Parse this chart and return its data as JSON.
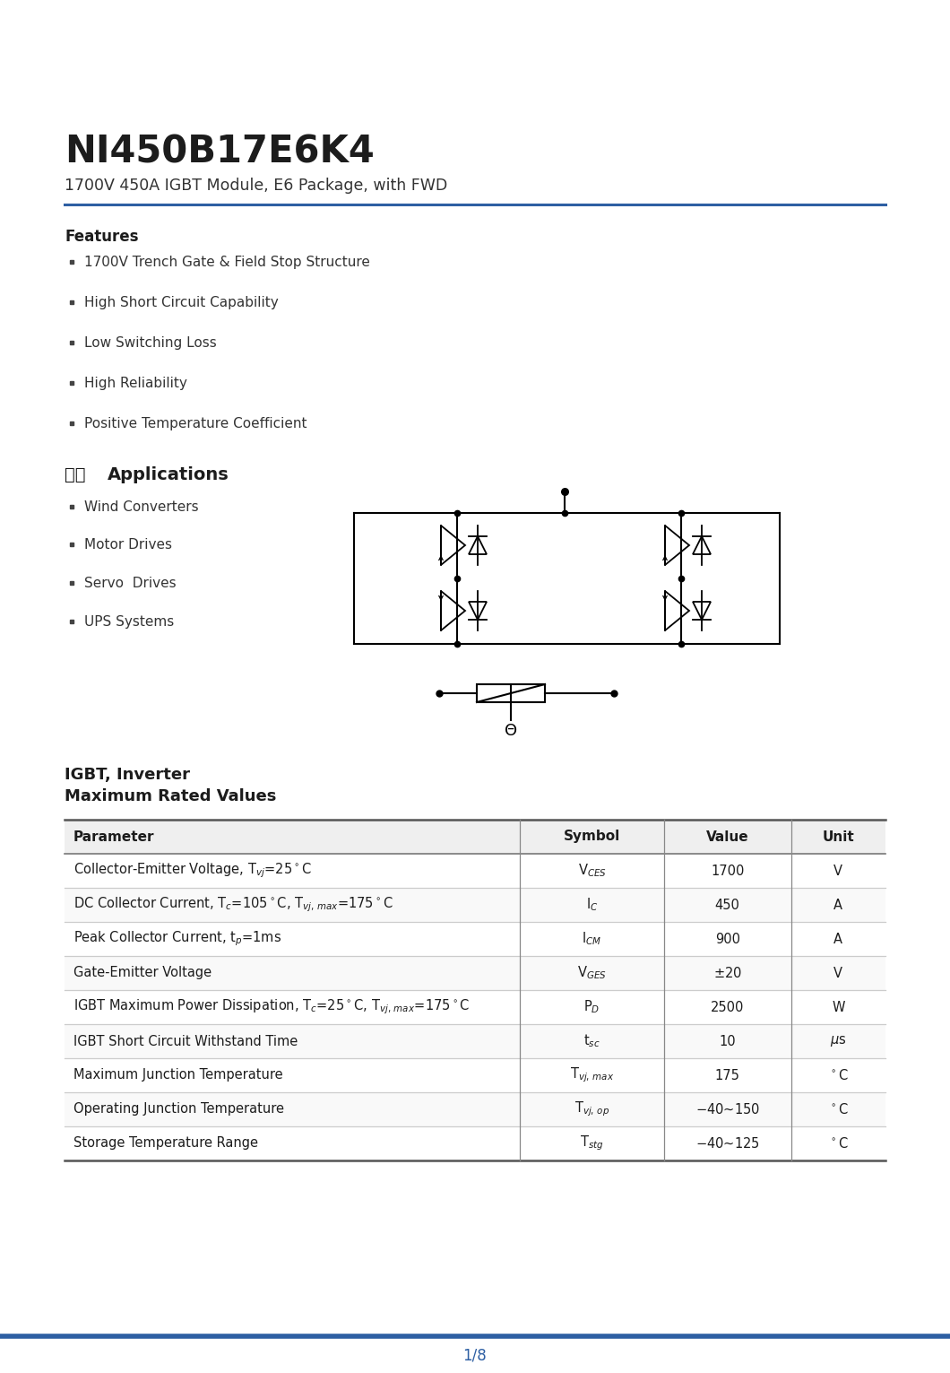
{
  "title": "NI450B17E6K4",
  "subtitle": "1700V 450A IGBT Module, E6 Package, with FWD",
  "bg_color": "#ffffff",
  "accent_color": "#2e5fa3",
  "text_color": "#333333",
  "features_title": "Features",
  "features": [
    "1700V Trench Gate & Field Stop Structure",
    "High Short Circuit Capability",
    "Low Switching Loss",
    "High Reliability",
    "Positive Temperature Coefficient"
  ],
  "apps_title_cn": "应用",
  "apps_title_en": "Applications",
  "apps": [
    "Wind Converters",
    "Motor Drives",
    "Servo  Drives",
    "UPS Systems"
  ],
  "table_title1": "IGBT, Inverter",
  "table_title2": "Maximum Rated Values",
  "table_headers": [
    "Parameter",
    "Symbol",
    "Value",
    "Unit"
  ],
  "page_number": "1/8",
  "accent_color2": "#2e5fa3"
}
